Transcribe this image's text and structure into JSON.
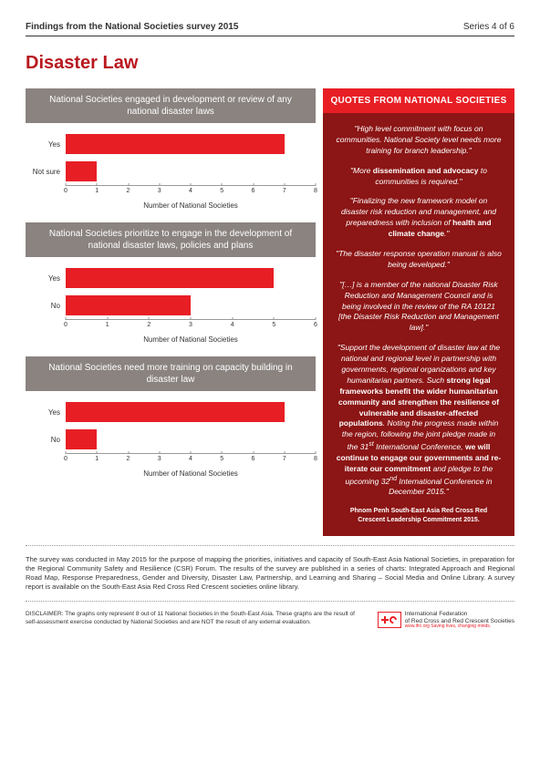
{
  "header": {
    "title": "Findings from the National Societies survey 2015",
    "series": "Series 4 of 6"
  },
  "main_title": "Disaster Law",
  "charts": [
    {
      "title": "National Societies engaged in development or review of any national disaster laws",
      "xlabel": "Number of National Societies",
      "xmax": 8,
      "tick_step": 1,
      "bars": [
        {
          "label": "Yes",
          "value": 7
        },
        {
          "label": "Not sure",
          "value": 1
        }
      ]
    },
    {
      "title": "National Societies prioritize to engage in the development of national disaster laws, policies and plans",
      "xlabel": "Number of National Societies",
      "xmax": 6,
      "tick_step": 1,
      "bars": [
        {
          "label": "Yes",
          "value": 5
        },
        {
          "label": "No",
          "value": 3
        }
      ]
    },
    {
      "title": "National Societies need more training on capacity building in disaster law",
      "xlabel": "Number of National Societies",
      "xmax": 8,
      "tick_step": 1,
      "bars": [
        {
          "label": "Yes",
          "value": 7
        },
        {
          "label": "No",
          "value": 1
        }
      ]
    }
  ],
  "quotes": {
    "header": "QUOTES FROM NATIONAL SOCIETIES",
    "items": [
      "\"High level commitment with focus on communities. National Society level needs more training for branch leadership.\"",
      "\"More <strong>dissemination and advocacy</strong> to communities is required.\"",
      "\"Finalizing the new framework model on disaster risk reduction and management, and preparedness with inclusion of <strong>health and climate change</strong>.\"",
      "\"The disaster response operation manual is also being developed.\"",
      "\"[…] is a member of the national Disaster Risk Reduction and Management Council and is being involved in the review of the RA 10121 [the Disaster Risk Reduction and Management law].\"",
      "\"Support the development of disaster law at the national and regional level in partnership with governments, regional organizations and key humanitarian partners. Such <strong>strong legal frameworks benefit the wider humanitarian community and strengthen the resilience of vulnerable and disaster-affected populations</strong>. Noting the progress made within the region, following the joint pledge made in the 31<sup>st</sup> International Conference, <strong>we will continue to engage our governments and re-iterate our commitment</strong> and pledge to the upcoming 32<sup>nd</sup> International Conference in December 2015.\""
    ],
    "source": "Phnom Penh South-East Asia Red Cross Red Crescent Leadership Commitment 2015."
  },
  "footer": {
    "survey_text": "The survey was conducted in May 2015 for the purpose of mapping the priorities, initiatives and capacity of South-East Asia National Societies, in preparation for the Regional Community Safety and Resilience (CSR) Forum. The results of the survey are published in a series of charts: Integrated Approach and Regional Road Map, Response Preparedness, Gender and Diversity, Disaster Law, Partnership, and Learning and Sharing – Social Media and Online Library. A survey report is available on the South-East Asia Red Cross Red Crescent societies online library.",
    "disclaimer": "DISCLAIMER: The graphs only represent 8 out of 11 National Societies in the South-East Asia. These graphs are the result of self-assessment exercise conducted by National Societies and are NOT the result of any external evaluation.",
    "logo_text": "International Federation\nof Red Cross and Red Crescent Societies",
    "logo_url": "www.ifrc.org Saving lives, changing minds."
  },
  "colors": {
    "bar": "#e81e25",
    "chart_header_bg": "#8a8380",
    "quotes_header_bg": "#e81e25",
    "quotes_body_bg": "#8c1515",
    "title": "#b8191f"
  }
}
